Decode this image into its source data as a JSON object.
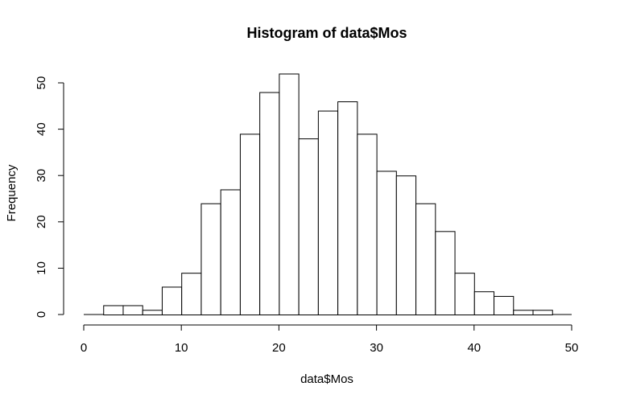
{
  "chart_data": {
    "type": "bar",
    "title": "Histogram of data$Mos",
    "xlabel": "data$Mos",
    "ylabel": "Frequency",
    "xlim": [
      0,
      50
    ],
    "ylim": [
      0,
      50
    ],
    "xticks": [
      0,
      10,
      20,
      30,
      40,
      50
    ],
    "yticks": [
      0,
      10,
      20,
      30,
      40,
      50
    ],
    "bin_width": 2,
    "bins": [
      {
        "start": 2,
        "end": 4,
        "value": 2
      },
      {
        "start": 4,
        "end": 6,
        "value": 2
      },
      {
        "start": 6,
        "end": 8,
        "value": 1
      },
      {
        "start": 8,
        "end": 10,
        "value": 6
      },
      {
        "start": 10,
        "end": 12,
        "value": 9
      },
      {
        "start": 12,
        "end": 14,
        "value": 24
      },
      {
        "start": 14,
        "end": 16,
        "value": 27
      },
      {
        "start": 16,
        "end": 18,
        "value": 39
      },
      {
        "start": 18,
        "end": 20,
        "value": 48
      },
      {
        "start": 20,
        "end": 22,
        "value": 52
      },
      {
        "start": 22,
        "end": 24,
        "value": 38
      },
      {
        "start": 24,
        "end": 26,
        "value": 44
      },
      {
        "start": 26,
        "end": 28,
        "value": 46
      },
      {
        "start": 28,
        "end": 30,
        "value": 39
      },
      {
        "start": 30,
        "end": 32,
        "value": 31
      },
      {
        "start": 32,
        "end": 34,
        "value": 30
      },
      {
        "start": 34,
        "end": 36,
        "value": 24
      },
      {
        "start": 36,
        "end": 38,
        "value": 18
      },
      {
        "start": 38,
        "end": 40,
        "value": 9
      },
      {
        "start": 40,
        "end": 42,
        "value": 5
      },
      {
        "start": 42,
        "end": 44,
        "value": 4
      },
      {
        "start": 44,
        "end": 46,
        "value": 1
      },
      {
        "start": 46,
        "end": 48,
        "value": 1
      }
    ],
    "bar_fill": "#ffffff",
    "bar_stroke": "#000000",
    "grid": false,
    "legend": "none"
  }
}
